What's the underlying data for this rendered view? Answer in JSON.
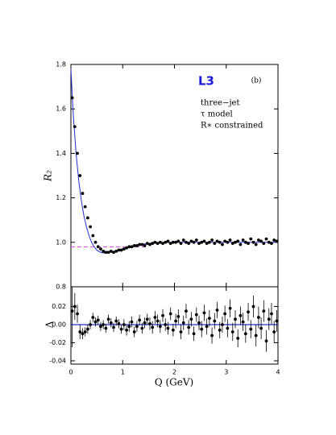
{
  "chart_data": [
    {
      "type": "scatter",
      "ylabel": "R₂",
      "annotations": {
        "experiment": "L3",
        "panel": "(b)",
        "lines": [
          "three−jet",
          "τ model",
          "R∗ constrained"
        ]
      },
      "xlim": [
        0,
        4
      ],
      "xticks": [
        0,
        1,
        2,
        3,
        4
      ],
      "ylim": [
        0.8,
        1.8
      ],
      "yticks": [
        0.8,
        {
          "value": 1,
          "label": "1.0"
        },
        1.2,
        1.4,
        1.6,
        1.8
      ],
      "reference_line": {
        "value": 0.98,
        "xmax": 1.5,
        "color": "#e040e0"
      },
      "fit": {
        "color": "#1f2fd0",
        "x": [
          0,
          0.025,
          0.05,
          0.1,
          0.15,
          0.2,
          0.25,
          0.3,
          0.35,
          0.4,
          0.45,
          0.5,
          0.55,
          0.6,
          0.65,
          0.7,
          0.8,
          0.9,
          1.0,
          1.1,
          1.2,
          1.3,
          1.4,
          1.5,
          1.6,
          1.8,
          2.0,
          2.5,
          3.0,
          3.5,
          4.0
        ],
        "values": [
          1.78,
          1.66,
          1.56,
          1.4,
          1.28,
          1.19,
          1.12,
          1.07,
          1.03,
          1.0,
          0.98,
          0.965,
          0.958,
          0.953,
          0.952,
          0.953,
          0.957,
          0.963,
          0.97,
          0.977,
          0.983,
          0.988,
          0.992,
          0.995,
          0.997,
          0.999,
          1.0,
          1.0,
          1.0,
          1.0,
          1.0
        ]
      },
      "x": [
        0.025,
        0.075,
        0.125,
        0.175,
        0.225,
        0.275,
        0.325,
        0.375,
        0.425,
        0.475,
        0.525,
        0.575,
        0.625,
        0.675,
        0.725,
        0.775,
        0.825,
        0.875,
        0.925,
        0.975,
        1.025,
        1.075,
        1.125,
        1.175,
        1.225,
        1.275,
        1.325,
        1.375,
        1.425,
        1.475,
        1.525,
        1.575,
        1.625,
        1.675,
        1.725,
        1.775,
        1.825,
        1.875,
        1.925,
        1.975,
        2.025,
        2.075,
        2.125,
        2.175,
        2.225,
        2.275,
        2.325,
        2.375,
        2.425,
        2.475,
        2.525,
        2.575,
        2.625,
        2.675,
        2.725,
        2.775,
        2.825,
        2.875,
        2.925,
        2.975,
        3.025,
        3.075,
        3.125,
        3.175,
        3.225,
        3.275,
        3.325,
        3.375,
        3.425,
        3.475,
        3.525,
        3.575,
        3.625,
        3.675,
        3.725,
        3.775,
        3.825,
        3.875,
        3.925,
        3.975
      ],
      "series": [
        {
          "color": "#000000",
          "values": [
            1.65,
            1.52,
            1.4,
            1.3,
            1.22,
            1.16,
            1.11,
            1.07,
            1.03,
            1.0,
            0.98,
            0.97,
            0.96,
            0.955,
            0.955,
            0.96,
            0.955,
            0.96,
            0.965,
            0.965,
            0.97,
            0.975,
            0.98,
            0.98,
            0.985,
            0.985,
            0.99,
            0.99,
            0.985,
            0.995,
            0.99,
            0.995,
            1.0,
            0.995,
            1.0,
            0.995,
            1.0,
            1.005,
            0.995,
            1.0,
            1.0,
            1.005,
            0.995,
            1.01,
            1.0,
            0.995,
            1.005,
            1.0,
            1.01,
            0.995,
            1.0,
            1.005,
            0.995,
            1.0,
            1.01,
            0.995,
            1.005,
            1.0,
            0.99,
            1.005,
            1.0,
            1.01,
            0.995,
            1.0,
            1.005,
            0.99,
            1.01,
            1.0,
            0.995,
            1.015,
            1.0,
            0.99,
            1.01,
            1.005,
            0.995,
            1.015,
            1.0,
            0.995,
            1.01,
            1.005
          ]
        }
      ]
    },
    {
      "type": "scatter",
      "ylabel": "Δ",
      "xlabel": "Q (GeV)",
      "xlim": [
        0,
        4
      ],
      "xticks": [
        0,
        1,
        2,
        3,
        4
      ],
      "ylim": [
        -0.0436,
        0.0418
      ],
      "yticks": [
        -0.04,
        -0.02,
        {
          "value": 0,
          "label": "0.00"
        },
        0.02
      ],
      "zero_line_color": "#1f2fd0",
      "x": [
        0.025,
        0.075,
        0.125,
        0.175,
        0.225,
        0.275,
        0.325,
        0.375,
        0.425,
        0.475,
        0.525,
        0.575,
        0.625,
        0.675,
        0.725,
        0.775,
        0.825,
        0.875,
        0.925,
        0.975,
        1.025,
        1.075,
        1.125,
        1.175,
        1.225,
        1.275,
        1.325,
        1.375,
        1.425,
        1.475,
        1.525,
        1.575,
        1.625,
        1.675,
        1.725,
        1.775,
        1.825,
        1.875,
        1.925,
        1.975,
        2.025,
        2.075,
        2.125,
        2.175,
        2.225,
        2.275,
        2.325,
        2.375,
        2.425,
        2.475,
        2.525,
        2.575,
        2.625,
        2.675,
        2.725,
        2.775,
        2.825,
        2.875,
        2.925,
        2.975,
        3.025,
        3.075,
        3.125,
        3.175,
        3.225,
        3.275,
        3.325,
        3.375,
        3.425,
        3.475,
        3.525,
        3.575,
        3.625,
        3.675,
        3.725,
        3.775,
        3.825,
        3.875,
        3.925,
        3.975
      ],
      "series": [
        {
          "color": "#000000",
          "values": [
            0.015,
            0.02,
            0.012,
            -0.008,
            -0.01,
            -0.008,
            -0.005,
            0.0,
            0.008,
            0.003,
            0.005,
            -0.002,
            0.0,
            -0.004,
            0.006,
            0.002,
            -0.003,
            0.004,
            0.001,
            -0.005,
            0.0,
            -0.006,
            -0.002,
            0.003,
            -0.008,
            -0.002,
            0.005,
            -0.004,
            0.002,
            0.006,
            0.001,
            -0.003,
            0.008,
            0.004,
            -0.002,
            0.01,
            0.0,
            -0.004,
            0.012,
            -0.006,
            0.004,
            0.009,
            -0.008,
            0.002,
            0.015,
            -0.003,
            0.006,
            -0.01,
            0.011,
            0.002,
            -0.005,
            0.013,
            -0.002,
            0.007,
            -0.012,
            0.004,
            0.016,
            -0.006,
            0.0,
            0.012,
            -0.004,
            0.018,
            -0.008,
            0.006,
            -0.015,
            0.01,
            0.003,
            -0.01,
            0.014,
            -0.005,
            0.02,
            -0.012,
            0.008,
            -0.004,
            0.015,
            -0.018,
            0.006,
            0.012,
            -0.008,
            0.004
          ],
          "errors": [
            0.04,
            0.015,
            0.01,
            0.008,
            0.006,
            0.005,
            0.005,
            0.005,
            0.005,
            0.005,
            0.005,
            0.005,
            0.005,
            0.005,
            0.005,
            0.005,
            0.005,
            0.005,
            0.005,
            0.005,
            0.006,
            0.006,
            0.006,
            0.006,
            0.006,
            0.006,
            0.006,
            0.006,
            0.006,
            0.006,
            0.007,
            0.007,
            0.007,
            0.007,
            0.007,
            0.007,
            0.007,
            0.007,
            0.007,
            0.007,
            0.008,
            0.008,
            0.008,
            0.008,
            0.008,
            0.008,
            0.008,
            0.008,
            0.008,
            0.008,
            0.009,
            0.009,
            0.009,
            0.009,
            0.009,
            0.009,
            0.009,
            0.009,
            0.009,
            0.009,
            0.01,
            0.01,
            0.01,
            0.01,
            0.01,
            0.01,
            0.01,
            0.01,
            0.01,
            0.01,
            0.012,
            0.012,
            0.012,
            0.012,
            0.012,
            0.012,
            0.012,
            0.012,
            0.012,
            0.012
          ]
        }
      ]
    }
  ]
}
